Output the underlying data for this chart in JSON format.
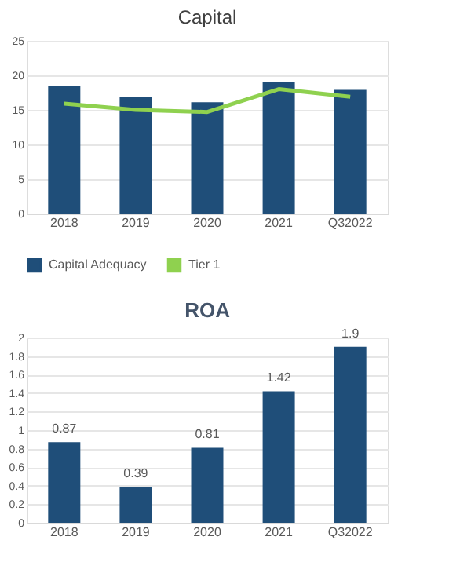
{
  "chart_data": [
    {
      "type": "bar",
      "title": "Capital",
      "categories": [
        "2018",
        "2019",
        "2020",
        "2021",
        "Q32022"
      ],
      "ylim": [
        0,
        25
      ],
      "yticks": [
        0,
        5,
        10,
        15,
        20,
        25
      ],
      "grid": "y",
      "legend": "bottom",
      "series": [
        {
          "name": "Capital Adequacy",
          "color": "#1f4e79",
          "values": [
            18.4,
            16.9,
            16.1,
            19.1,
            17.9
          ]
        },
        {
          "name": "Tier 1",
          "type": "line",
          "color": "#8fd14f",
          "values": [
            15.9,
            15.0,
            14.7,
            18.0,
            16.9
          ]
        }
      ]
    },
    {
      "type": "bar",
      "title": "ROA",
      "categories": [
        "2018",
        "2019",
        "2020",
        "2021",
        "Q32022"
      ],
      "ylim": [
        0,
        2
      ],
      "yticks": [
        0,
        0.2,
        0.4,
        0.6,
        0.8,
        1,
        1.2,
        1.4,
        1.6,
        1.8,
        2
      ],
      "grid": "y",
      "data_labels": true,
      "series": [
        {
          "color": "#1f4e79",
          "values": [
            0.87,
            0.39,
            0.81,
            1.42,
            1.9
          ]
        }
      ]
    }
  ]
}
